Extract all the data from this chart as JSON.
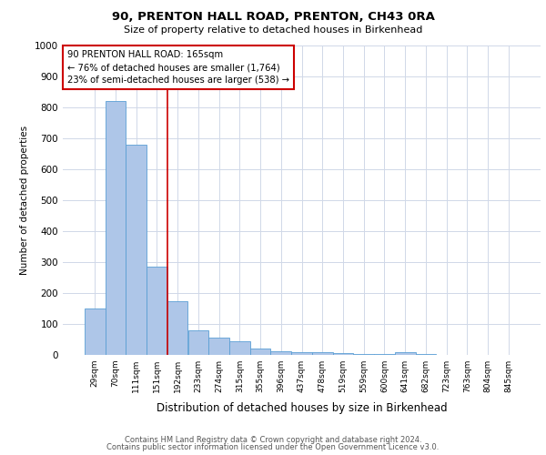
{
  "title": "90, PRENTON HALL ROAD, PRENTON, CH43 0RA",
  "subtitle": "Size of property relative to detached houses in Birkenhead",
  "xlabel": "Distribution of detached houses by size in Birkenhead",
  "ylabel": "Number of detached properties",
  "categories": [
    "29sqm",
    "70sqm",
    "111sqm",
    "151sqm",
    "192sqm",
    "233sqm",
    "274sqm",
    "315sqm",
    "355sqm",
    "396sqm",
    "437sqm",
    "478sqm",
    "519sqm",
    "559sqm",
    "600sqm",
    "641sqm",
    "682sqm",
    "723sqm",
    "763sqm",
    "804sqm",
    "845sqm"
  ],
  "values": [
    150,
    820,
    680,
    285,
    175,
    78,
    55,
    43,
    22,
    13,
    8,
    8,
    5,
    3,
    2,
    8,
    2,
    1,
    1,
    1,
    1
  ],
  "bar_color": "#aec6e8",
  "bar_edge_color": "#5a9fd4",
  "red_line_index": 3.5,
  "highlight_line_color": "#cc0000",
  "annotation_line1": "90 PRENTON HALL ROAD: 165sqm",
  "annotation_line2": "← 76% of detached houses are smaller (1,764)",
  "annotation_line3": "23% of semi-detached houses are larger (538) →",
  "annotation_box_color": "#cc0000",
  "ylim": [
    0,
    1000
  ],
  "yticks": [
    0,
    100,
    200,
    300,
    400,
    500,
    600,
    700,
    800,
    900,
    1000
  ],
  "footer_line1": "Contains HM Land Registry data © Crown copyright and database right 2024.",
  "footer_line2": "Contains public sector information licensed under the Open Government Licence v3.0.",
  "bg_color": "#ffffff",
  "grid_color": "#d0d8e8"
}
